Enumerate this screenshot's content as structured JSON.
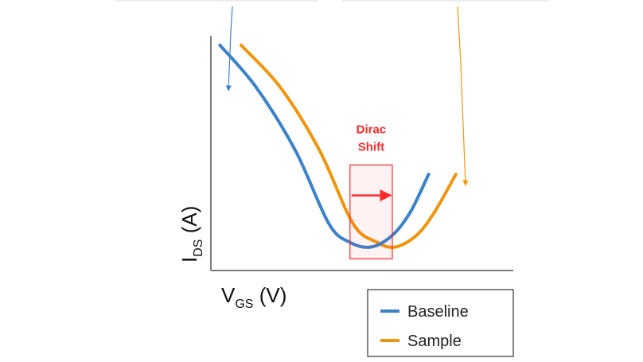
{
  "chart_data": {
    "type": "line",
    "title": "",
    "xlabel": {
      "main": "V",
      "sub": "GS",
      "unit": " (V)"
    },
    "ylabel": {
      "main": "I",
      "sub": "DS",
      "unit": " (A)"
    },
    "xlim": [
      0,
      10
    ],
    "ylim": [
      0,
      10
    ],
    "grid": false,
    "legend_position": "bottom-right",
    "series": [
      {
        "name": "Baseline",
        "color": "#3b82c9",
        "x": [
          0.3,
          1.5,
          2.8,
          3.9,
          4.6,
          5.3,
          6.0,
          6.6,
          7.2
        ],
        "y": [
          9.6,
          7.8,
          5.1,
          2.0,
          1.2,
          1.0,
          1.5,
          2.5,
          4.1
        ]
      },
      {
        "name": "Sample",
        "color": "#f0960e",
        "x": [
          1.0,
          2.3,
          3.6,
          4.7,
          5.5,
          6.1,
          6.8,
          7.4,
          8.1
        ],
        "y": [
          9.6,
          7.8,
          5.1,
          2.0,
          1.2,
          1.0,
          1.5,
          2.5,
          4.1
        ]
      }
    ],
    "annotations": [
      {
        "text": [
          "Dirac",
          "Shift"
        ],
        "color": "#ff2a2a",
        "box": {
          "x": [
            4.6,
            6.0
          ],
          "y": [
            0.5,
            4.5
          ]
        },
        "arrow": {
          "from_x": 4.6,
          "to_x": 6.0,
          "y": 3.2
        }
      }
    ]
  },
  "colors": {
    "axis": "#555555",
    "annotation": "#ff2a2a",
    "legend_border": "#333333"
  }
}
